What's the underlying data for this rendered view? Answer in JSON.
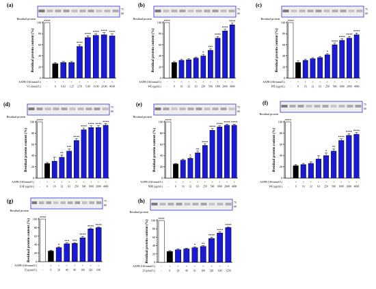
{
  "figure": {
    "blot_label": "Residual protein",
    "blot_marks": [
      "75",
      "60"
    ],
    "ylabel": "Residual protein content (%)",
    "aaph_label": "AAPH (160 mmol/L)",
    "colors": {
      "control": "#ffffff",
      "model": "#000000",
      "treatment": "#1a1ad6",
      "text": "#000000",
      "blot_frame": "#2b2bd0"
    }
  },
  "chart_data": [
    {
      "panel": "(a)",
      "type": "bar",
      "ylim": [
        0,
        100
      ],
      "yticks": [
        0,
        20,
        40,
        60,
        80,
        100
      ],
      "dose_label": "VC (mmol/L)",
      "categories": [
        "-",
        "0",
        "0.63",
        "1.25",
        "2.50",
        "5.00",
        "10.00",
        "20.00",
        "40.00"
      ],
      "aaph": [
        "-",
        "+",
        "+",
        "+",
        "+",
        "+",
        "+",
        "+",
        "+"
      ],
      "values": [
        100,
        26,
        28,
        28,
        57,
        73,
        77,
        78,
        76
      ],
      "errors": [
        0,
        2,
        2,
        2,
        3,
        3,
        3,
        4,
        4
      ],
      "significance": [
        "****",
        "",
        "",
        "",
        "****",
        "****",
        "****",
        "****",
        "****"
      ]
    },
    {
      "panel": "(b)",
      "type": "bar",
      "ylim": [
        0,
        100
      ],
      "yticks": [
        0,
        20,
        40,
        60,
        80,
        100
      ],
      "dose_label": "WE (μg/mL)",
      "categories": [
        "-",
        "0",
        "16",
        "32",
        "63",
        "250",
        "500",
        "1000",
        "2000",
        "4000"
      ],
      "aaph": [
        "-",
        "+",
        "+",
        "+",
        "+",
        "+",
        "+",
        "+",
        "+",
        "+"
      ],
      "values": [
        100,
        28,
        32,
        33,
        36,
        40,
        50,
        72,
        85,
        96
      ],
      "errors": [
        0,
        2,
        2,
        2,
        2,
        3,
        3,
        3,
        3,
        3
      ],
      "significance": [
        "****",
        "",
        "",
        "",
        "",
        "*",
        "***",
        "****",
        "****",
        "****"
      ]
    },
    {
      "panel": "(c)",
      "type": "bar",
      "ylim": [
        0,
        100
      ],
      "yticks": [
        0,
        20,
        40,
        60,
        80,
        100
      ],
      "dose_label": "PFE (μg/mL)",
      "categories": [
        "-",
        "0",
        "16",
        "32",
        "63",
        "250",
        "500",
        "1000",
        "2000",
        "4000"
      ],
      "aaph": [
        "-",
        "+",
        "+",
        "+",
        "+",
        "+",
        "+",
        "+",
        "+",
        "+"
      ],
      "values": [
        100,
        28,
        32,
        35,
        37,
        42,
        60,
        68,
        72,
        78
      ],
      "errors": [
        0,
        3,
        2,
        2,
        2,
        2,
        3,
        3,
        3,
        3
      ],
      "significance": [
        "****",
        "",
        "",
        "",
        "",
        "*",
        "****",
        "****",
        "****",
        "****"
      ]
    },
    {
      "panel": "(d)",
      "type": "bar",
      "ylim": [
        0,
        100
      ],
      "yticks": [
        0,
        20,
        40,
        60,
        80,
        100
      ],
      "dose_label": "EAE (μg/mL)",
      "categories": [
        "-",
        "0",
        "16",
        "32",
        "63",
        "250",
        "500",
        "1000",
        "2000",
        "4000"
      ],
      "aaph": [
        "-",
        "+",
        "+",
        "+",
        "+",
        "+",
        "+",
        "+",
        "+",
        "+"
      ],
      "values": [
        100,
        26,
        30,
        37,
        48,
        67,
        86,
        90,
        90,
        94
      ],
      "errors": [
        0,
        2,
        7,
        4,
        4,
        3,
        3,
        3,
        3,
        3
      ],
      "significance": [
        "****",
        "",
        "",
        "**",
        "***",
        "****",
        "****",
        "****",
        "****",
        "****"
      ]
    },
    {
      "panel": "(e)",
      "type": "bar",
      "ylim": [
        0,
        100
      ],
      "yticks": [
        0,
        20,
        40,
        60,
        80,
        100
      ],
      "dose_label": "NBE (μg/mL)",
      "categories": [
        "-",
        "0",
        "16",
        "32",
        "63",
        "250",
        "500",
        "1000",
        "2000",
        "4000"
      ],
      "aaph": [
        "-",
        "+",
        "+",
        "+",
        "+",
        "+",
        "+",
        "+",
        "+",
        "+"
      ],
      "values": [
        100,
        25,
        32,
        35,
        45,
        58,
        85,
        91,
        94,
        94
      ],
      "errors": [
        0,
        1,
        2,
        2,
        3,
        3,
        3,
        2,
        2,
        2
      ],
      "significance": [
        "****",
        "",
        "",
        "*",
        "**",
        "****",
        "****",
        "****",
        "****",
        "****"
      ]
    },
    {
      "panel": "(f)",
      "type": "bar",
      "ylim": [
        0,
        100
      ],
      "yticks": [
        0,
        20,
        40,
        60,
        80,
        100
      ],
      "dose_label": "WE (μg/mL)",
      "categories": [
        "-",
        "0",
        "16",
        "32",
        "63",
        "250",
        "500",
        "1000",
        "2000",
        "4000"
      ],
      "aaph": [
        "-",
        "+",
        "+",
        "+",
        "+",
        "+",
        "+",
        "+",
        "+",
        "+"
      ],
      "values": [
        100,
        22,
        24,
        26,
        34,
        40,
        48,
        67,
        76,
        78
      ],
      "errors": [
        0,
        2,
        2,
        3,
        6,
        5,
        4,
        3,
        3,
        3
      ],
      "significance": [
        "****",
        "",
        "",
        "",
        "",
        "*",
        "**",
        "****",
        "****",
        "****"
      ]
    },
    {
      "panel": "(g)",
      "type": "bar",
      "ylim": [
        0,
        100
      ],
      "yticks": [
        0,
        20,
        40,
        60,
        80,
        100
      ],
      "dose_label": "15 (μmol/L)",
      "categories": [
        "-",
        "0",
        "20",
        "40",
        "80",
        "160",
        "320",
        "630"
      ],
      "aaph": [
        "-",
        "+",
        "+",
        "+",
        "+",
        "+",
        "+",
        "+"
      ],
      "values": [
        100,
        25,
        33,
        42,
        43,
        56,
        77,
        80
      ],
      "errors": [
        0,
        2,
        2,
        2,
        2,
        3,
        2,
        2
      ],
      "significance": [
        "****",
        "",
        "*",
        "***",
        "***",
        "****",
        "****",
        "****"
      ]
    },
    {
      "panel": "(h)",
      "type": "bar",
      "ylim": [
        0,
        100
      ],
      "yticks": [
        0,
        20,
        40,
        60,
        80,
        100
      ],
      "dose_label": "25 (μmol/L)",
      "categories": [
        "-",
        "0",
        "20",
        "40",
        "61",
        "160",
        "320",
        "630",
        "1250"
      ],
      "aaph": [
        "-",
        "+",
        "+",
        "+",
        "+",
        "+",
        "+",
        "+",
        "+"
      ],
      "values": [
        100,
        26,
        30,
        32,
        35,
        38,
        57,
        70,
        83
      ],
      "errors": [
        0,
        2,
        2,
        2,
        2,
        2,
        3,
        3,
        2
      ],
      "significance": [
        "****",
        "",
        "",
        "",
        "*",
        "**",
        "****",
        "****",
        "****"
      ]
    }
  ]
}
